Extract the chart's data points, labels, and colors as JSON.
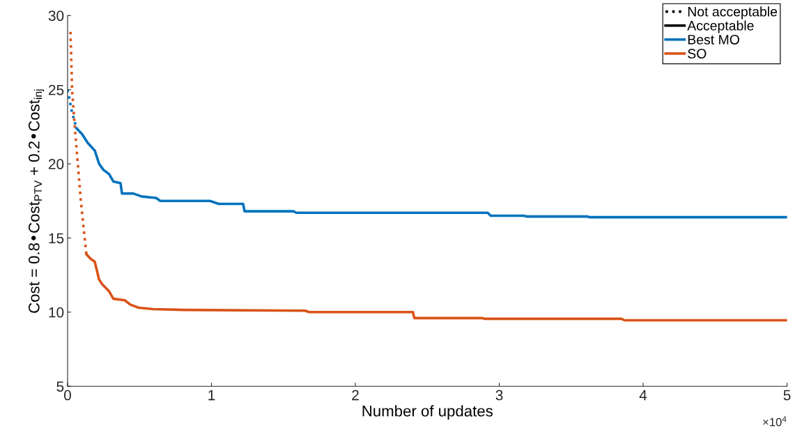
{
  "chart_data": {
    "type": "line",
    "xlabel": "Number of updates",
    "ylabel": "Cost = 0.8•Cost$_{PTV}$ + 0.2•Cost$_{inj}$",
    "xlim": [
      0,
      5
    ],
    "xticks": [
      0,
      1,
      2,
      3,
      4,
      5
    ],
    "ylim": [
      5,
      30
    ],
    "yticks": [
      5,
      10,
      15,
      20,
      25,
      30
    ],
    "annotations": [
      "×10$^{4}$"
    ],
    "grid": false,
    "legend": "top right",
    "series": [
      {
        "name": "Not acceptable",
        "color": "#000000",
        "line_style": "dotted"
      },
      {
        "name": "Acceptable",
        "color": "#000000",
        "line_style": "solid"
      },
      {
        "name": "Best MO",
        "color": "#0072bd",
        "line_style": "solid",
        "x": [
          0.062,
          0.101,
          0.141,
          0.189,
          0.219,
          0.249,
          0.289,
          0.319,
          0.368,
          0.378,
          0.457,
          0.515,
          0.615,
          0.644,
          0.99,
          1.05,
          1.22,
          1.23,
          1.57,
          1.59,
          2.92,
          2.94,
          3.17,
          3.19,
          3.61,
          3.63,
          5.0
        ],
        "values": [
          22.4,
          22.0,
          21.4,
          20.9,
          20.0,
          19.6,
          19.3,
          18.8,
          18.7,
          18.0,
          18.0,
          17.8,
          17.7,
          17.5,
          17.5,
          17.3,
          17.3,
          16.8,
          16.8,
          16.7,
          16.7,
          16.5,
          16.5,
          16.45,
          16.45,
          16.4,
          16.4
        ]
      },
      {
        "name": "SO",
        "color": "#d95319",
        "line_style": "solid",
        "x": [
          0.131,
          0.16,
          0.189,
          0.219,
          0.239,
          0.269,
          0.289,
          0.318,
          0.397,
          0.437,
          0.495,
          0.595,
          0.811,
          1.65,
          1.68,
          2.4,
          2.41,
          2.88,
          2.9,
          3.85,
          3.87,
          5.0
        ],
        "values": [
          13.9,
          13.6,
          13.4,
          12.2,
          11.9,
          11.6,
          11.4,
          10.9,
          10.8,
          10.5,
          10.3,
          10.2,
          10.15,
          10.1,
          10.0,
          10.0,
          9.6,
          9.6,
          9.55,
          9.55,
          9.45,
          9.45
        ]
      },
      {
        "color": "#0072bd",
        "line_style": "dotted",
        "x": [
          0,
          0.03,
          0.062
        ],
        "values": [
          25.0,
          23.5,
          22.4
        ]
      },
      {
        "color": "#d95319",
        "line_style": "dotted",
        "x": [
          0.02,
          0.032,
          0.052,
          0.072,
          0.0915,
          0.111,
          0.131
        ],
        "values": [
          28.9,
          24.9,
          22.2,
          19.9,
          17.6,
          15.7,
          13.9
        ]
      }
    ]
  }
}
